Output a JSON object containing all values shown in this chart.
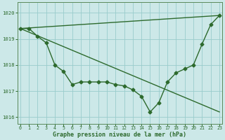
{
  "line1": {
    "x": [
      0,
      1,
      2,
      3,
      4,
      5,
      6,
      7,
      8,
      9,
      10,
      11,
      12,
      13,
      14,
      15,
      16,
      17,
      18,
      19,
      20,
      21,
      22,
      23
    ],
    "y": [
      1019.4,
      1019.4,
      1019.1,
      1018.85,
      1018.0,
      1017.75,
      1017.25,
      1017.35,
      1017.35,
      1017.35,
      1017.35,
      1017.25,
      1017.2,
      1017.05,
      1016.8,
      1016.2,
      1016.55,
      1017.35,
      1017.7,
      1017.85,
      1018.0,
      1018.8,
      1019.55,
      1019.9
    ],
    "color": "#2d6a2d",
    "linewidth": 1.0,
    "marker": "D",
    "markersize": 2.5
  },
  "straight_line1": {
    "x": [
      0,
      23
    ],
    "y": [
      1019.4,
      1016.2
    ],
    "color": "#2d6a2d",
    "linewidth": 1.0
  },
  "straight_line2": {
    "x": [
      0,
      23
    ],
    "y": [
      1019.4,
      1019.9
    ],
    "color": "#2d6a2d",
    "linewidth": 1.0
  },
  "ylim": [
    1015.75,
    1020.4
  ],
  "xlim": [
    -0.3,
    23.3
  ],
  "yticks": [
    1016,
    1017,
    1018,
    1019,
    1020
  ],
  "xticks": [
    0,
    1,
    2,
    3,
    4,
    5,
    6,
    7,
    8,
    9,
    10,
    11,
    12,
    13,
    14,
    15,
    16,
    17,
    18,
    19,
    20,
    21,
    22,
    23
  ],
  "xlabel": "Graphe pression niveau de la mer (hPa)",
  "bg_color": "#cce8e8",
  "grid_color": "#99cccc",
  "text_color": "#2d6a2d",
  "axis_color": "#5a8a5a",
  "label_color": "#2d6a2d"
}
